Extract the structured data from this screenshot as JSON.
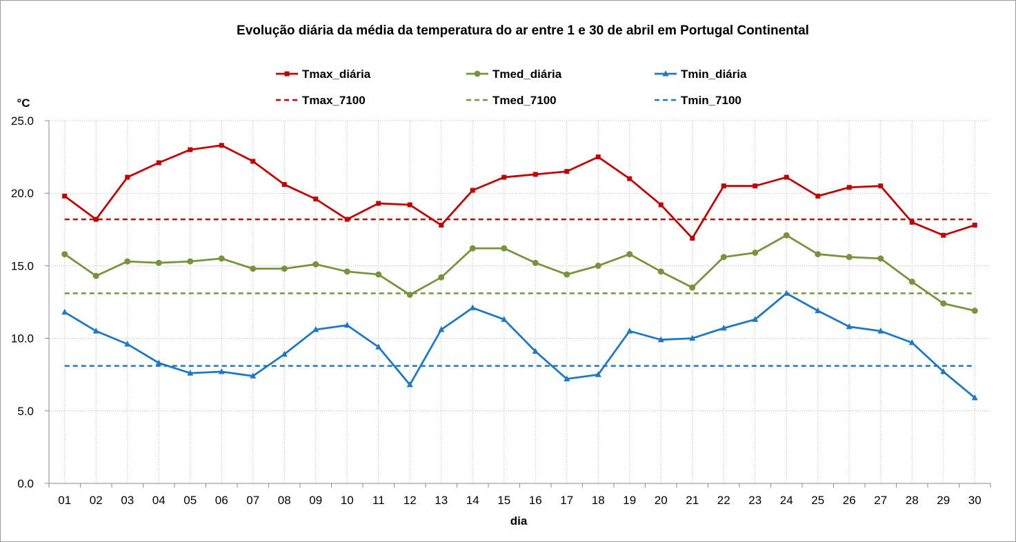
{
  "chart_data": {
    "type": "line",
    "title": "Evolução diária da média da temperatura do ar entre 1 e 30 de abril em Portugal Continental",
    "xlabel": "dia",
    "ylabel": "°C",
    "ylim": [
      0,
      25
    ],
    "y_ticks": [
      "0.0",
      "5.0",
      "10.0",
      "15.0",
      "20.0",
      "25.0"
    ],
    "grid": true,
    "legend_position": "top",
    "categories": [
      "01",
      "02",
      "03",
      "04",
      "05",
      "06",
      "07",
      "08",
      "09",
      "10",
      "11",
      "12",
      "13",
      "14",
      "15",
      "16",
      "17",
      "18",
      "19",
      "20",
      "21",
      "22",
      "23",
      "24",
      "25",
      "26",
      "27",
      "28",
      "29",
      "30"
    ],
    "series": [
      {
        "name": "Tmax_diária",
        "color": "#c00000",
        "marker": "square",
        "style": "solid",
        "values": [
          19.8,
          18.2,
          21.1,
          22.1,
          23.0,
          23.3,
          22.2,
          20.6,
          19.6,
          18.2,
          19.3,
          19.2,
          17.8,
          20.2,
          21.1,
          21.3,
          21.5,
          22.5,
          21.0,
          19.2,
          16.9,
          20.5,
          20.5,
          21.1,
          19.8,
          20.4,
          20.5,
          18.0,
          17.1,
          17.8
        ]
      },
      {
        "name": "Tmed_diária",
        "color": "#77933c",
        "marker": "circle",
        "style": "solid",
        "values": [
          15.8,
          14.3,
          15.3,
          15.2,
          15.3,
          15.5,
          14.8,
          14.8,
          15.1,
          14.6,
          14.4,
          13.0,
          14.2,
          16.2,
          16.2,
          15.2,
          14.4,
          15.0,
          15.8,
          14.6,
          13.5,
          15.6,
          15.9,
          17.1,
          15.8,
          15.6,
          15.5,
          13.9,
          12.4,
          11.9
        ]
      },
      {
        "name": "Tmin_diária",
        "color": "#1f78c2",
        "marker": "triangle",
        "style": "solid",
        "values": [
          11.8,
          10.5,
          9.6,
          8.3,
          7.6,
          7.7,
          7.4,
          8.9,
          10.6,
          10.9,
          9.4,
          6.8,
          10.6,
          12.1,
          11.3,
          9.1,
          7.2,
          7.5,
          10.5,
          9.9,
          10.0,
          10.7,
          11.3,
          13.1,
          11.9,
          10.8,
          10.5,
          9.7,
          7.7,
          5.9
        ]
      },
      {
        "name": "Tmax_7100",
        "color": "#c00000",
        "marker": "none",
        "style": "dashed",
        "constant": 18.2
      },
      {
        "name": "Tmed_7100",
        "color": "#77933c",
        "marker": "none",
        "style": "dashed",
        "constant": 13.1
      },
      {
        "name": "Tmin_7100",
        "color": "#1f78c2",
        "marker": "none",
        "style": "dashed",
        "constant": 8.1
      }
    ]
  }
}
